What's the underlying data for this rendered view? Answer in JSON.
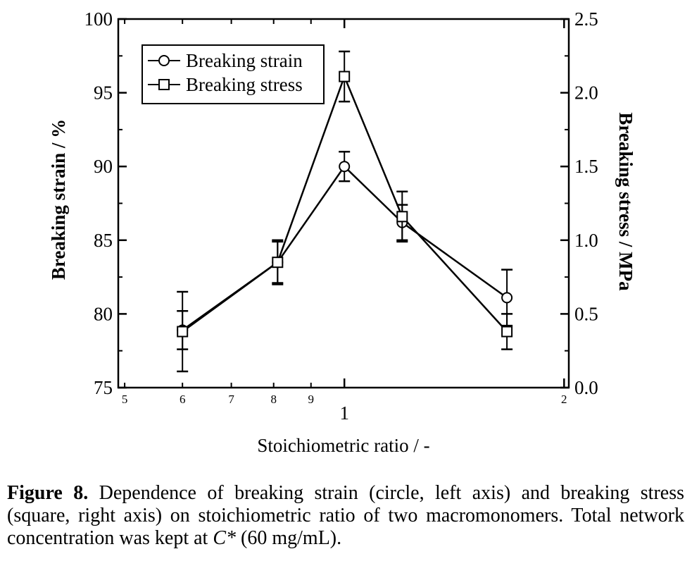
{
  "chart_data": {
    "type": "line",
    "xlabel": "Stoichiometric ratio / -",
    "ylabel": "Breaking strain / %",
    "y2label": "Breaking stress / MPa",
    "x_scale": "log",
    "xlim": [
      0.49,
      2.03
    ],
    "ylim": [
      75,
      100
    ],
    "y2lim": [
      0.0,
      2.5
    ],
    "x_major_ticks": [
      "1",
      "2"
    ],
    "x_minor_tick_labels": [
      "5",
      "6",
      "7",
      "8",
      "9"
    ],
    "x_minor_tick_values": [
      0.5,
      0.6,
      0.7,
      0.8,
      0.9
    ],
    "y_ticks": [
      "75",
      "80",
      "85",
      "90",
      "95",
      "100"
    ],
    "y2_ticks": [
      "0.0",
      "0.5",
      "1.0",
      "1.5",
      "2.0",
      "2.5"
    ],
    "legend_position": "top-left",
    "grid": false,
    "series": [
      {
        "name": "Breaking strain",
        "marker": "circle",
        "axis": "left",
        "x": [
          0.6,
          0.81,
          1.0,
          1.2,
          1.67
        ],
        "y": [
          78.9,
          83.5,
          90.0,
          86.2,
          81.1
        ],
        "error": [
          1.3,
          1.4,
          1.0,
          1.2,
          1.9
        ]
      },
      {
        "name": "Breaking stress",
        "marker": "square",
        "axis": "right",
        "x": [
          0.6,
          0.81,
          1.0,
          1.2,
          1.67
        ],
        "y": [
          0.38,
          0.85,
          2.11,
          1.16,
          0.38
        ],
        "error": [
          0.27,
          0.15,
          0.17,
          0.17,
          0.12
        ]
      }
    ]
  },
  "caption": {
    "label": "Figure 8.",
    "text_1": " Dependence of breaking strain (circle, left axis) and breaking stress (square, right axis) on stoichiometric ratio of two macromonomers. Total network concentration was kept at ",
    "symbol": "C*",
    "text_2": " (60 mg/mL)."
  }
}
